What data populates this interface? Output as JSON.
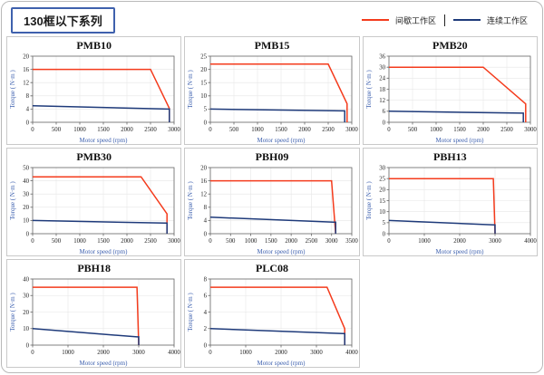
{
  "page": {
    "title": "130框以下系列",
    "legend": [
      {
        "label": "间歇工作区",
        "color": "#f43b1c"
      },
      {
        "label": "连续工作区",
        "color": "#1e3a7a"
      }
    ]
  },
  "chart_data": [
    {
      "type": "line",
      "title": "PMB10",
      "xlabel": "Motor speed (rpm)",
      "ylabel": "Torque ( N·m )",
      "xlim": [
        0,
        3000
      ],
      "ylim": [
        0,
        20
      ],
      "xticks": [
        0,
        500,
        1000,
        1500,
        2000,
        2500,
        3000
      ],
      "yticks": [
        0,
        4,
        8,
        12,
        16,
        20
      ],
      "grid": true,
      "legend_position": "none",
      "series": [
        {
          "name": "间歇工作区",
          "color": "#f43b1c",
          "points": [
            [
              0,
              16
            ],
            [
              2500,
              16
            ],
            [
              2900,
              4.2
            ],
            [
              2900,
              0
            ]
          ]
        },
        {
          "name": "连续工作区",
          "color": "#1e3a7a",
          "points": [
            [
              0,
              5
            ],
            [
              2850,
              4
            ],
            [
              2900,
              4
            ],
            [
              2900,
              0
            ]
          ]
        }
      ]
    },
    {
      "type": "line",
      "title": "PMB15",
      "xlabel": "Motor speed (rpm)",
      "ylabel": "Torque ( N·m )",
      "xlim": [
        0,
        3000
      ],
      "ylim": [
        0,
        25
      ],
      "xticks": [
        0,
        500,
        1000,
        1500,
        2000,
        2500,
        3000
      ],
      "yticks": [
        0,
        5,
        10,
        15,
        20,
        25
      ],
      "grid": true,
      "legend_position": "none",
      "series": [
        {
          "name": "间歇工作区",
          "color": "#f43b1c",
          "points": [
            [
              0,
              22
            ],
            [
              2500,
              22
            ],
            [
              2900,
              7
            ],
            [
              2900,
              0
            ]
          ]
        },
        {
          "name": "连续工作区",
          "color": "#1e3a7a",
          "points": [
            [
              0,
              5
            ],
            [
              2800,
              4.3
            ],
            [
              2850,
              4.3
            ],
            [
              2850,
              0
            ]
          ]
        }
      ]
    },
    {
      "type": "line",
      "title": "PMB20",
      "xlabel": "Motor speed (rpm)",
      "ylabel": "Torque ( N·m )",
      "xlim": [
        0,
        3000
      ],
      "ylim": [
        0,
        36
      ],
      "xticks": [
        0,
        500,
        1000,
        1500,
        2000,
        2500,
        3000
      ],
      "yticks": [
        0,
        6,
        12,
        18,
        24,
        30,
        36
      ],
      "grid": true,
      "legend_position": "none",
      "series": [
        {
          "name": "间歇工作区",
          "color": "#f43b1c",
          "points": [
            [
              0,
              30
            ],
            [
              2000,
              30
            ],
            [
              2900,
              10
            ],
            [
              2900,
              0
            ]
          ]
        },
        {
          "name": "连续工作区",
          "color": "#1e3a7a",
          "points": [
            [
              0,
              6
            ],
            [
              2800,
              5
            ],
            [
              2850,
              5
            ],
            [
              2850,
              0
            ]
          ]
        }
      ]
    },
    {
      "type": "line",
      "title": "PMB30",
      "xlabel": "Motor speed (rpm)",
      "ylabel": "Torque ( N·m )",
      "xlim": [
        0,
        3000
      ],
      "ylim": [
        0,
        50
      ],
      "xticks": [
        0,
        500,
        1000,
        1500,
        2000,
        2500,
        3000
      ],
      "yticks": [
        0,
        10,
        20,
        30,
        40,
        50
      ],
      "grid": true,
      "legend_position": "none",
      "series": [
        {
          "name": "间歇工作区",
          "color": "#f43b1c",
          "points": [
            [
              0,
              43
            ],
            [
              2300,
              43
            ],
            [
              2850,
              15
            ],
            [
              2850,
              0
            ]
          ]
        },
        {
          "name": "连续工作区",
          "color": "#1e3a7a",
          "points": [
            [
              0,
              10
            ],
            [
              2800,
              8
            ],
            [
              2850,
              8
            ],
            [
              2850,
              0
            ]
          ]
        }
      ]
    },
    {
      "type": "line",
      "title": "PBH09",
      "xlabel": "Motor speed (rpm)",
      "ylabel": "Torque ( N·m )",
      "xlim": [
        0,
        3500
      ],
      "ylim": [
        0,
        20
      ],
      "xticks": [
        0,
        500,
        1000,
        1500,
        2000,
        2500,
        3000,
        3500
      ],
      "yticks": [
        0,
        4,
        8,
        12,
        16,
        20
      ],
      "grid": true,
      "legend_position": "none",
      "series": [
        {
          "name": "间歇工作区",
          "color": "#f43b1c",
          "points": [
            [
              0,
              16
            ],
            [
              3000,
              16
            ],
            [
              3100,
              0
            ]
          ]
        },
        {
          "name": "连续工作区",
          "color": "#1e3a7a",
          "points": [
            [
              0,
              5
            ],
            [
              3050,
              3.5
            ],
            [
              3100,
              3.5
            ],
            [
              3100,
              0
            ]
          ]
        }
      ]
    },
    {
      "type": "line",
      "title": "PBH13",
      "xlabel": "Motor speed (rpm)",
      "ylabel": "Torque ( N·m )",
      "xlim": [
        0,
        4000
      ],
      "ylim": [
        0,
        30
      ],
      "xticks": [
        0,
        1000,
        2000,
        3000,
        4000
      ],
      "yticks": [
        0,
        5,
        10,
        15,
        20,
        25,
        30
      ],
      "grid": true,
      "legend_position": "none",
      "series": [
        {
          "name": "间歇工作区",
          "color": "#f43b1c",
          "points": [
            [
              0,
              25
            ],
            [
              2950,
              25
            ],
            [
              3000,
              0
            ]
          ]
        },
        {
          "name": "连续工作区",
          "color": "#1e3a7a",
          "points": [
            [
              0,
              6
            ],
            [
              2950,
              4
            ],
            [
              3000,
              4
            ],
            [
              3000,
              0
            ]
          ]
        }
      ]
    },
    {
      "type": "line",
      "title": "PBH18",
      "xlabel": "Motor speed (rpm)",
      "ylabel": "Torque ( N·m )",
      "xlim": [
        0,
        4000
      ],
      "ylim": [
        0,
        40
      ],
      "xticks": [
        0,
        1000,
        2000,
        3000,
        4000
      ],
      "yticks": [
        0,
        10,
        20,
        30,
        40
      ],
      "grid": true,
      "legend_position": "none",
      "series": [
        {
          "name": "间歇工作区",
          "color": "#f43b1c",
          "points": [
            [
              0,
              35
            ],
            [
              2950,
              35
            ],
            [
              3000,
              0
            ]
          ]
        },
        {
          "name": "连续工作区",
          "color": "#1e3a7a",
          "points": [
            [
              0,
              10
            ],
            [
              2950,
              5
            ],
            [
              3000,
              5
            ],
            [
              3000,
              0
            ]
          ]
        }
      ]
    },
    {
      "type": "line",
      "title": "PLC08",
      "xlabel": "Motor speed (rpm)",
      "ylabel": "Torque ( N·m )",
      "xlim": [
        0,
        4000
      ],
      "ylim": [
        0,
        8
      ],
      "xticks": [
        0,
        1000,
        2000,
        3000,
        4000
      ],
      "yticks": [
        0,
        2,
        4,
        6,
        8
      ],
      "grid": true,
      "legend_position": "none",
      "series": [
        {
          "name": "间歇工作区",
          "color": "#f43b1c",
          "points": [
            [
              0,
              7
            ],
            [
              3300,
              7
            ],
            [
              3800,
              2
            ],
            [
              3800,
              0
            ]
          ]
        },
        {
          "name": "连续工作区",
          "color": "#1e3a7a",
          "points": [
            [
              0,
              2
            ],
            [
              3750,
              1.4
            ],
            [
              3800,
              1.4
            ],
            [
              3800,
              0
            ]
          ]
        }
      ]
    }
  ]
}
